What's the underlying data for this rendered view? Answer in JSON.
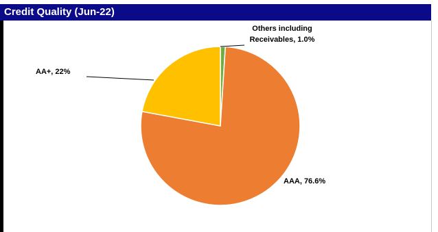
{
  "header": {
    "title": "Credit Quality (Jun-22)"
  },
  "colors": {
    "title_bar": "#0b0b8a",
    "title_text": "#ffffff",
    "slice_aaa": "#ed7d31",
    "slice_aa_plus": "#ffc000",
    "slice_others": "#70ad47"
  },
  "chart_data": {
    "type": "pie",
    "title": "Credit Quality (Jun-22)",
    "start_angle_deg": 0,
    "direction": "clockwise",
    "slices": [
      {
        "key": "others",
        "label_lines": [
          "Others including",
          "Receivables, 1.0%"
        ],
        "value": 1.0,
        "color": "#70ad47"
      },
      {
        "key": "aaa",
        "label_lines": [
          "AAA, 76.6%"
        ],
        "value": 76.6,
        "color": "#ed7d31"
      },
      {
        "key": "aa_plus",
        "label_lines": [
          "AA+, 22%"
        ],
        "value": 22,
        "color": "#ffc000"
      }
    ],
    "legend": "none"
  }
}
